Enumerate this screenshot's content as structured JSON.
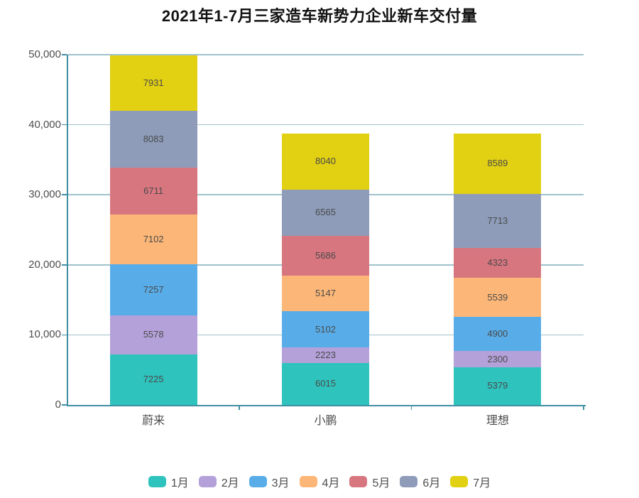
{
  "title": "2021年1-7月三家造车新势力企业新车交付量",
  "chart_data": {
    "type": "bar",
    "stacked": true,
    "title": "2021年1-7月三家造车新势力企业新车交付量",
    "categories": [
      "蔚来",
      "小鹏",
      "理想"
    ],
    "series": [
      {
        "name": "1月",
        "color": "#2fc3bd",
        "values": [
          7225,
          6015,
          5379
        ]
      },
      {
        "name": "2月",
        "color": "#b4a1da",
        "values": [
          5578,
          2223,
          2300
        ]
      },
      {
        "name": "3月",
        "color": "#58ade9",
        "values": [
          7257,
          5102,
          4900
        ]
      },
      {
        "name": "4月",
        "color": "#fcb778",
        "values": [
          7102,
          5147,
          5539
        ]
      },
      {
        "name": "5月",
        "color": "#d87680",
        "values": [
          6711,
          5686,
          4323
        ]
      },
      {
        "name": "6月",
        "color": "#8e9cba",
        "values": [
          8083,
          6565,
          7713
        ]
      },
      {
        "name": "7月",
        "color": "#e2d012",
        "values": [
          7931,
          8040,
          8589
        ]
      }
    ],
    "xlabel": "",
    "ylabel": "",
    "ylim": [
      0,
      50000
    ],
    "yticks": [
      0,
      10000,
      20000,
      30000,
      40000,
      50000
    ],
    "ytick_labels": [
      "0",
      "10,000",
      "20,000",
      "30,000",
      "40,000",
      "50,000"
    ],
    "grid": true,
    "data_labels": true,
    "legend_position": "bottom",
    "colors": {
      "axis": "#3f8fa2",
      "gridline": "#a0c2cc",
      "tick_label": "#4d4d4d",
      "value_label": "#4a4a4a",
      "title": "#111111"
    }
  }
}
